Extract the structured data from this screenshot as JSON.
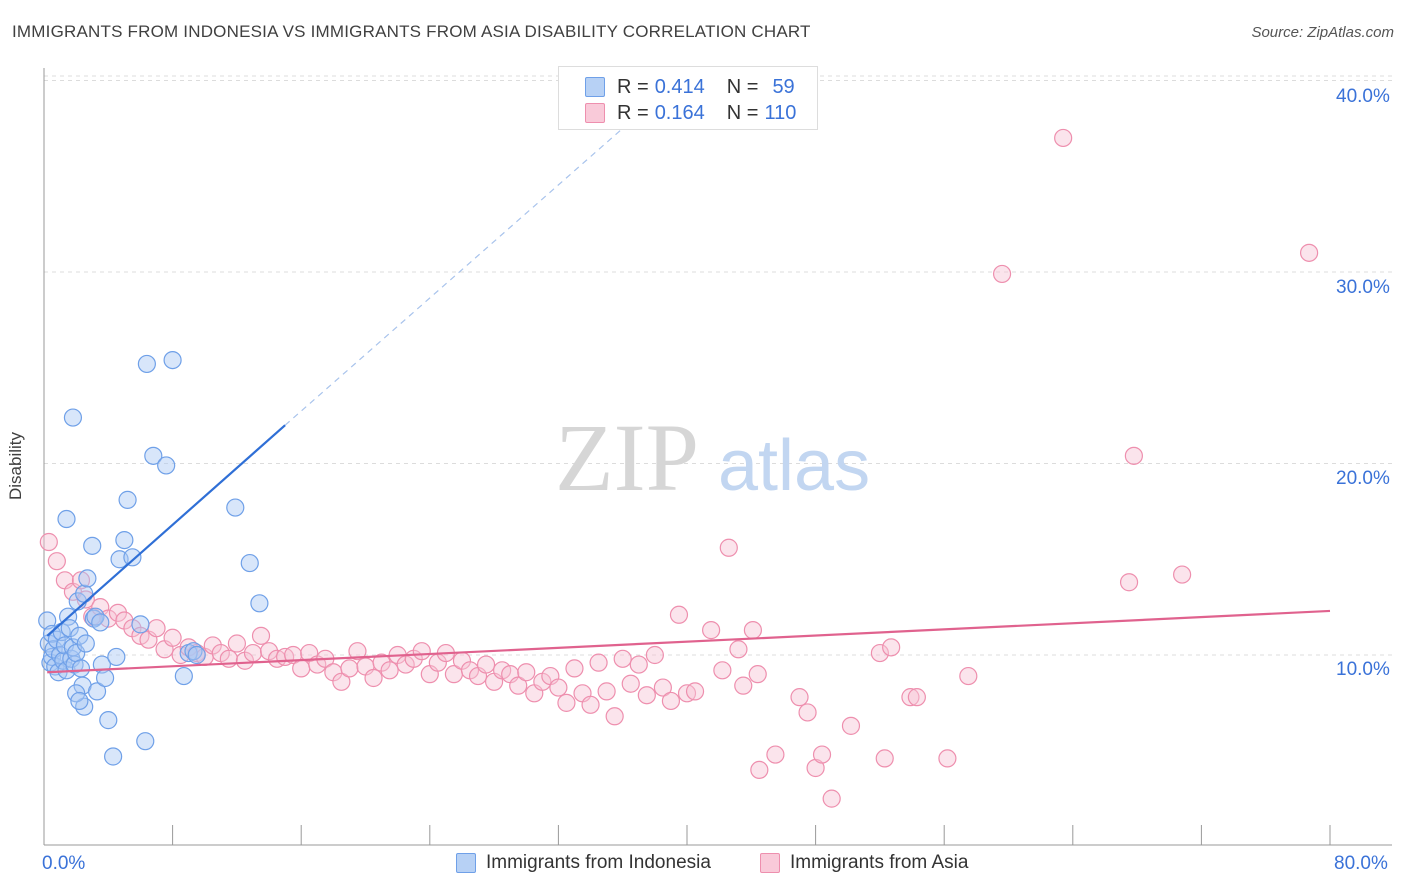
{
  "title": "IMMIGRANTS FROM INDONESIA VS IMMIGRANTS FROM ASIA DISABILITY CORRELATION CHART",
  "source": "Source: ZipAtlas.com",
  "watermark": {
    "zip": "ZIP",
    "atlas": "atlas"
  },
  "legend": {
    "rows": [
      {
        "r_label": "R = ",
        "r_value": "0.414",
        "n_label": "N = ",
        "n_value": "59"
      },
      {
        "r_label": "R = ",
        "r_value": "0.164",
        "n_label": "N = ",
        "n_value": "110"
      }
    ]
  },
  "chart_data": {
    "type": "scatter",
    "title": "IMMIGRANTS FROM INDONESIA VS IMMIGRANTS FROM ASIA DISABILITY CORRELATION CHART",
    "xlabel": "",
    "ylabel": "Disability",
    "xlim": [
      0,
      80
    ],
    "ylim": [
      0,
      42
    ],
    "x_tick_labels": [
      "0.0%",
      "80.0%"
    ],
    "y_ticks": [
      10,
      20,
      30,
      40
    ],
    "y_tick_labels": [
      "10.0%",
      "20.0%",
      "30.0%",
      "40.0%"
    ],
    "grid": true,
    "series": [
      {
        "name": "Immigrants from Indonesia",
        "color": "#6fa0e8",
        "fill": "#a9c8f3",
        "line_color": "#2f6fd6",
        "r": 0.414,
        "n": 59,
        "trend": {
          "x0": 0.2,
          "y0": 11.0,
          "x1": 15,
          "y1": 22.0,
          "dash_x1": 36,
          "dash_y1": 37.5
        },
        "points": [
          [
            0.2,
            11.8
          ],
          [
            0.3,
            10.6
          ],
          [
            0.4,
            9.6
          ],
          [
            0.5,
            11.1
          ],
          [
            0.5,
            9.9
          ],
          [
            0.6,
            10.3
          ],
          [
            0.7,
            9.4
          ],
          [
            0.8,
            10.8
          ],
          [
            0.9,
            9.1
          ],
          [
            1.0,
            10.0
          ],
          [
            1.1,
            11.2
          ],
          [
            1.2,
            9.7
          ],
          [
            1.3,
            10.5
          ],
          [
            1.4,
            9.2
          ],
          [
            1.5,
            12.0
          ],
          [
            1.6,
            11.4
          ],
          [
            1.7,
            9.8
          ],
          [
            1.8,
            10.4
          ],
          [
            1.9,
            9.5
          ],
          [
            2.0,
            10.1
          ],
          [
            2.1,
            12.8
          ],
          [
            2.2,
            11.0
          ],
          [
            2.3,
            9.3
          ],
          [
            2.4,
            8.4
          ],
          [
            2.5,
            7.3
          ],
          [
            2.6,
            10.6
          ],
          [
            1.4,
            17.1
          ],
          [
            1.8,
            22.4
          ],
          [
            2.0,
            8.0
          ],
          [
            2.2,
            7.6
          ],
          [
            2.5,
            13.2
          ],
          [
            2.7,
            14.0
          ],
          [
            3.0,
            15.7
          ],
          [
            3.1,
            11.9
          ],
          [
            3.2,
            12.0
          ],
          [
            3.3,
            8.1
          ],
          [
            3.5,
            11.7
          ],
          [
            3.6,
            9.5
          ],
          [
            3.8,
            8.8
          ],
          [
            4.0,
            6.6
          ],
          [
            4.3,
            4.7
          ],
          [
            4.5,
            9.9
          ],
          [
            4.7,
            15.0
          ],
          [
            5.0,
            16.0
          ],
          [
            5.5,
            15.1
          ],
          [
            6.0,
            11.6
          ],
          [
            6.3,
            5.5
          ],
          [
            6.8,
            20.4
          ],
          [
            7.6,
            19.9
          ],
          [
            5.2,
            18.1
          ],
          [
            6.4,
            25.2
          ],
          [
            8.0,
            25.4
          ],
          [
            9.0,
            10.1
          ],
          [
            9.3,
            10.2
          ],
          [
            8.7,
            8.9
          ],
          [
            9.5,
            10.0
          ],
          [
            11.9,
            17.7
          ],
          [
            12.8,
            14.8
          ],
          [
            13.4,
            12.7
          ]
        ]
      },
      {
        "name": "Immigrants from Asia",
        "color": "#ee8fae",
        "fill": "#f7c4d4",
        "line_color": "#e0628e",
        "r": 0.164,
        "n": 110,
        "trend": {
          "x0": 0.2,
          "y0": 9.1,
          "x1": 80,
          "y1": 12.3
        },
        "points": [
          [
            0.3,
            15.9
          ],
          [
            0.8,
            14.9
          ],
          [
            1.3,
            13.9
          ],
          [
            1.8,
            13.3
          ],
          [
            2.3,
            13.9
          ],
          [
            2.6,
            12.9
          ],
          [
            3.0,
            12.0
          ],
          [
            3.5,
            12.5
          ],
          [
            4.0,
            11.9
          ],
          [
            4.6,
            12.2
          ],
          [
            5.0,
            11.8
          ],
          [
            5.5,
            11.4
          ],
          [
            6.0,
            11.0
          ],
          [
            6.5,
            10.8
          ],
          [
            7.0,
            11.4
          ],
          [
            7.5,
            10.3
          ],
          [
            8.0,
            10.9
          ],
          [
            8.5,
            10.0
          ],
          [
            9.0,
            10.4
          ],
          [
            9.5,
            10.1
          ],
          [
            10.0,
            9.9
          ],
          [
            10.5,
            10.5
          ],
          [
            11.0,
            10.1
          ],
          [
            11.5,
            9.8
          ],
          [
            12.0,
            10.6
          ],
          [
            12.5,
            9.7
          ],
          [
            13.0,
            10.1
          ],
          [
            13.5,
            11.0
          ],
          [
            14.0,
            10.2
          ],
          [
            14.5,
            9.8
          ],
          [
            15.0,
            9.9
          ],
          [
            15.5,
            10.0
          ],
          [
            16.0,
            9.3
          ],
          [
            16.5,
            10.1
          ],
          [
            17.0,
            9.5
          ],
          [
            17.5,
            9.8
          ],
          [
            18.0,
            9.1
          ],
          [
            18.5,
            8.6
          ],
          [
            19.0,
            9.3
          ],
          [
            19.5,
            10.2
          ],
          [
            20.0,
            9.4
          ],
          [
            20.5,
            8.8
          ],
          [
            21.0,
            9.6
          ],
          [
            21.5,
            9.2
          ],
          [
            22.0,
            10.0
          ],
          [
            22.5,
            9.5
          ],
          [
            23.0,
            9.8
          ],
          [
            23.5,
            10.2
          ],
          [
            24.0,
            9.0
          ],
          [
            24.5,
            9.6
          ],
          [
            25.0,
            10.1
          ],
          [
            25.5,
            9.0
          ],
          [
            26.0,
            9.7
          ],
          [
            26.5,
            9.2
          ],
          [
            27.0,
            8.9
          ],
          [
            27.5,
            9.5
          ],
          [
            28.0,
            8.6
          ],
          [
            28.5,
            9.2
          ],
          [
            29.0,
            9.0
          ],
          [
            29.5,
            8.4
          ],
          [
            30.0,
            9.1
          ],
          [
            30.5,
            8.0
          ],
          [
            31.0,
            8.6
          ],
          [
            31.5,
            8.9
          ],
          [
            32.0,
            8.3
          ],
          [
            32.5,
            7.5
          ],
          [
            33.0,
            9.3
          ],
          [
            33.5,
            8.0
          ],
          [
            34.0,
            7.4
          ],
          [
            34.5,
            9.6
          ],
          [
            35.0,
            8.1
          ],
          [
            35.5,
            6.8
          ],
          [
            36.0,
            9.8
          ],
          [
            36.5,
            8.5
          ],
          [
            37.0,
            9.5
          ],
          [
            37.5,
            7.9
          ],
          [
            38.0,
            10.0
          ],
          [
            38.5,
            8.3
          ],
          [
            39.0,
            7.6
          ],
          [
            39.5,
            12.1
          ],
          [
            40.0,
            8.0
          ],
          [
            40.5,
            8.1
          ],
          [
            41.5,
            11.3
          ],
          [
            42.2,
            9.2
          ],
          [
            42.6,
            15.6
          ],
          [
            43.2,
            10.3
          ],
          [
            44.1,
            11.3
          ],
          [
            43.5,
            8.4
          ],
          [
            44.4,
            9.0
          ],
          [
            44.5,
            4.0
          ],
          [
            45.5,
            4.8
          ],
          [
            47.0,
            7.8
          ],
          [
            47.5,
            7.0
          ],
          [
            48.0,
            4.1
          ],
          [
            49.0,
            2.5
          ],
          [
            48.4,
            4.8
          ],
          [
            50.2,
            6.3
          ],
          [
            52.0,
            10.1
          ],
          [
            52.7,
            10.4
          ],
          [
            52.3,
            4.6
          ],
          [
            53.9,
            7.8
          ],
          [
            54.3,
            7.8
          ],
          [
            56.2,
            4.6
          ],
          [
            57.5,
            8.9
          ],
          [
            59.6,
            29.9
          ],
          [
            63.4,
            37.0
          ],
          [
            67.5,
            13.8
          ],
          [
            67.8,
            20.4
          ],
          [
            70.8,
            14.2
          ],
          [
            78.7,
            31.0
          ]
        ]
      }
    ]
  }
}
